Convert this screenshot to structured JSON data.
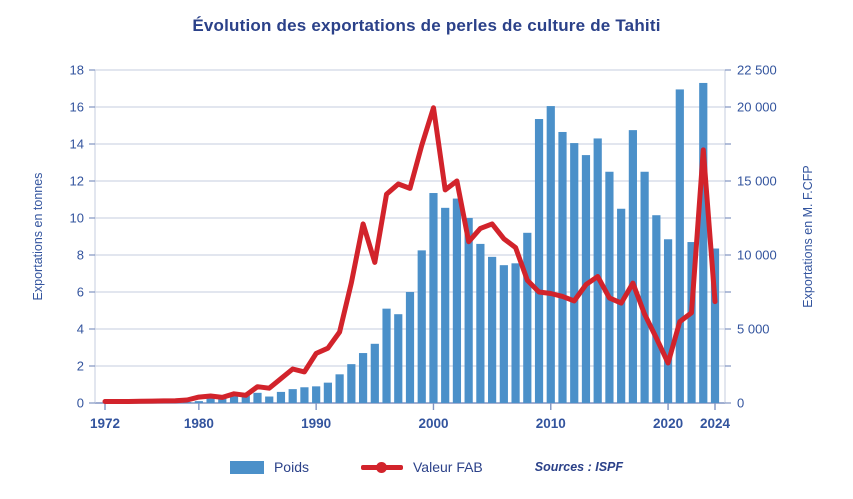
{
  "title": "Évolution des exportations de perles de culture de Tahiti",
  "legend": {
    "poids_label": "Poids",
    "valeur_label": "Valeur FAB"
  },
  "sources": "Sources : ISPF",
  "colors": {
    "bar": "#4b90c9",
    "line": "#d2232b",
    "title_text": "#2b4189",
    "axis_text": "#33549e",
    "grid": "#c6cedf",
    "axis_line": "#8094c2"
  },
  "chart_data": {
    "type": "bar",
    "title": "Évolution des exportations de perles de culture de Tahiti",
    "categories": [
      1972,
      1973,
      1974,
      1975,
      1976,
      1977,
      1978,
      1979,
      1980,
      1981,
      1982,
      1983,
      1984,
      1985,
      1986,
      1987,
      1988,
      1989,
      1990,
      1991,
      1992,
      1993,
      1994,
      1995,
      1996,
      1997,
      1998,
      1999,
      2000,
      2001,
      2002,
      2003,
      2004,
      2005,
      2006,
      2007,
      2008,
      2009,
      2010,
      2011,
      2012,
      2013,
      2014,
      2015,
      2016,
      2017,
      2018,
      2019,
      2020,
      2021,
      2022,
      2023,
      2024
    ],
    "series": [
      {
        "name": "Poids",
        "type": "bar",
        "axis": "left",
        "color": "#4b90c9",
        "values": [
          0,
          0,
          0,
          0,
          0.01,
          0.02,
          0.03,
          0.05,
          0.1,
          0.25,
          0.35,
          0.45,
          0.4,
          0.55,
          0.35,
          0.6,
          0.75,
          0.85,
          0.9,
          1.1,
          1.55,
          2.1,
          2.7,
          3.2,
          5.1,
          4.8,
          6.0,
          8.25,
          11.35,
          10.55,
          11.05,
          10.0,
          8.6,
          7.9,
          7.45,
          7.55,
          9.2,
          15.35,
          16.05,
          14.65,
          14.05,
          13.4,
          14.3,
          12.5,
          10.5,
          14.75,
          12.5,
          10.15,
          8.85,
          16.95,
          8.7,
          17.3,
          8.35
        ]
      },
      {
        "name": "Valeur FAB",
        "type": "line",
        "axis": "right",
        "color": "#d2232b",
        "values": [
          100,
          100,
          100,
          120,
          130,
          140,
          150,
          200,
          400,
          470,
          380,
          620,
          520,
          1100,
          1000,
          1650,
          2300,
          2100,
          3350,
          3700,
          4800,
          8100,
          12100,
          9500,
          14100,
          14800,
          14500,
          17400,
          19950,
          14400,
          15000,
          10900,
          11800,
          12100,
          11100,
          10500,
          8300,
          7500,
          7400,
          7200,
          6900,
          8000,
          8550,
          7100,
          6750,
          8100,
          6000,
          4400,
          2700,
          5500,
          6100,
          17100,
          6850
        ]
      }
    ],
    "left_axis": {
      "label": "Exportations en tonnes",
      "min": 0,
      "max": 18,
      "tick_step": 2,
      "tick_labels": [
        "0",
        "2",
        "4",
        "6",
        "8",
        "10",
        "12",
        "14",
        "16",
        "18"
      ]
    },
    "right_axis": {
      "label": "Exportations en M. F.CFP",
      "min": 0,
      "max": 22500,
      "minor_tick_step": 2500,
      "ticks": [
        {
          "v": 0,
          "label": "0"
        },
        {
          "v": 5000,
          "label": "5 000"
        },
        {
          "v": 10000,
          "label": "10 000"
        },
        {
          "v": 15000,
          "label": "15 000"
        },
        {
          "v": 20000,
          "label": "20 000"
        },
        {
          "v": 22500,
          "label": "22 500"
        }
      ]
    },
    "x_axis": {
      "labeled_years": [
        "1972",
        "1980",
        "1990",
        "2000",
        "2010",
        "2020",
        "2024"
      ]
    },
    "grid": true,
    "legend_position": "bottom"
  }
}
